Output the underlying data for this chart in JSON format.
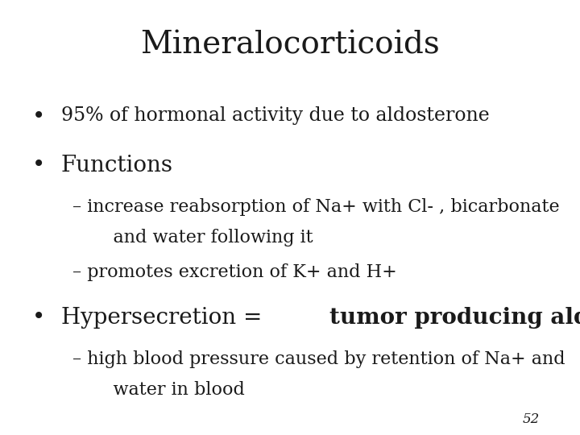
{
  "title": "Mineralocorticoids",
  "title_fontsize": 28,
  "title_font": "serif",
  "background_color": "#ffffff",
  "text_color": "#1a1a1a",
  "page_number": "52",
  "bullet1": "95% of hormonal activity due to aldosterone",
  "bullet1_fontsize": 17,
  "bullet2": "Functions",
  "bullet2_fontsize": 20,
  "sub1_line1": "– increase reabsorption of Na+ with Cl- , bicarbonate",
  "sub1_line2": "    and water following it",
  "sub1_fontsize": 16,
  "sub2": "– promotes excretion of K+ and H+",
  "sub2_fontsize": 16,
  "bullet3_part1": "Hypersecretion = ",
  "bullet3_part2": "tumor producing aldosteronism",
  "bullet3_fontsize": 20,
  "sub3_line1": "– high blood pressure caused by retention of Na+ and",
  "sub3_line2": "    water in blood",
  "sub3_fontsize": 16,
  "bullet_symbol": "•",
  "bullet_symbol_fontsize": 20,
  "page_number_fontsize": 12
}
